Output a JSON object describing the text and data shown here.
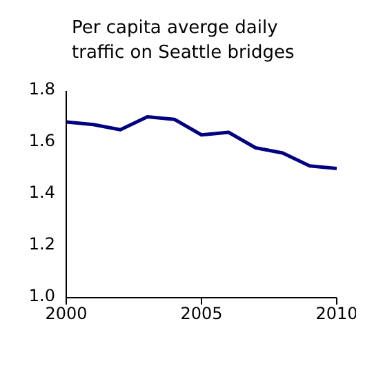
{
  "chart_data": {
    "type": "line",
    "title": "Per capita averge daily traffic on Seattle bridges",
    "x": [
      2000,
      2001,
      2002,
      2003,
      2004,
      2005,
      2006,
      2007,
      2008,
      2009,
      2010
    ],
    "series": [
      {
        "color": "#000080",
        "values": [
          1.68,
          1.67,
          1.65,
          1.7,
          1.69,
          1.63,
          1.64,
          1.58,
          1.56,
          1.51,
          1.5
        ]
      }
    ],
    "xlim": [
      2000,
      2010
    ],
    "xticks": [
      2000,
      2005,
      2010
    ],
    "ylim": [
      1.0,
      1.8
    ],
    "yticks": [
      {
        "value": 1.0,
        "label": "1.0"
      },
      1.2,
      1.4,
      1.6,
      1.8
    ],
    "grid": false,
    "legend": false,
    "marker": "none",
    "line_style": "solid"
  }
}
